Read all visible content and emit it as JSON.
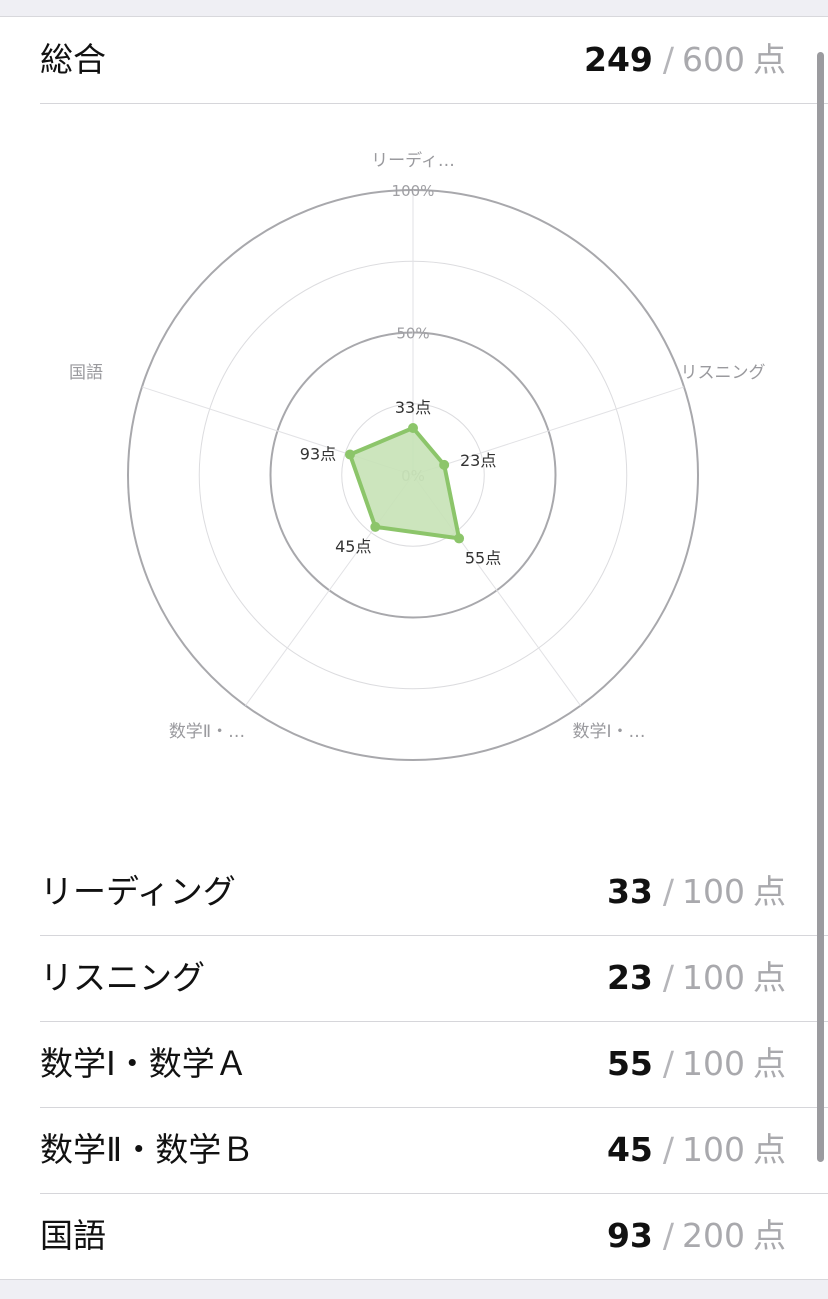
{
  "total": {
    "label": "総合",
    "score": "249",
    "separator": "/",
    "max": "600",
    "unit": "点"
  },
  "chart_data": {
    "type": "radar",
    "axes": [
      "リーディ…",
      "リスニング",
      "数学Ⅰ・…",
      "数学Ⅱ・…",
      "国語"
    ],
    "values": [
      33,
      23,
      55,
      45,
      93
    ],
    "maxima": [
      100,
      100,
      100,
      100,
      200
    ],
    "data_labels": [
      "33点",
      "23点",
      "55点",
      "45点",
      "93点"
    ],
    "scale_labels": [
      "100%",
      "50%",
      "0%"
    ],
    "ring_percent_steps": [
      25,
      50,
      75,
      100,
      125
    ],
    "colors": {
      "fill": "#c7e2b6",
      "stroke": "#8cc56a",
      "point": "#8cc56a",
      "grid": "#a8a8ac"
    }
  },
  "subjects": [
    {
      "label": "リーディング",
      "score": "33",
      "separator": "/",
      "max": "100",
      "unit": "点"
    },
    {
      "label": "リスニング",
      "score": "23",
      "separator": "/",
      "max": "100",
      "unit": "点"
    },
    {
      "label": "数学Ⅰ・数学Ａ",
      "score": "55",
      "separator": "/",
      "max": "100",
      "unit": "点"
    },
    {
      "label": "数学Ⅱ・数学Ｂ",
      "score": "45",
      "separator": "/",
      "max": "100",
      "unit": "点"
    },
    {
      "label": "国語",
      "score": "93",
      "separator": "/",
      "max": "200",
      "unit": "点"
    }
  ]
}
